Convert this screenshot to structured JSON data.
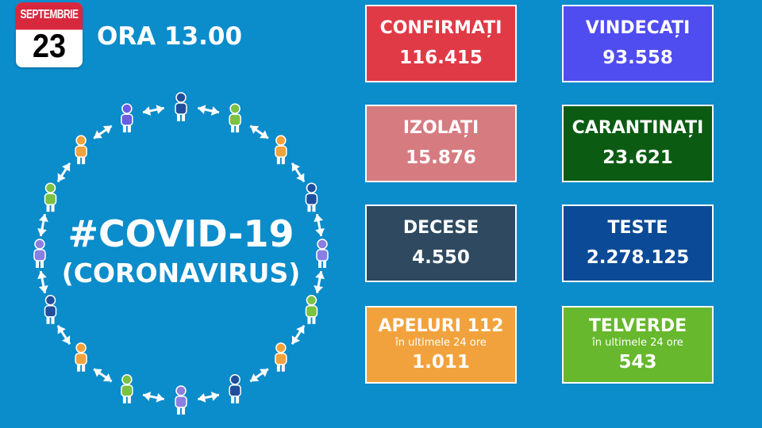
{
  "header": {
    "month": "SEPTEMBRIE",
    "day": "23",
    "time": "ORA 13.00"
  },
  "title": {
    "line1": "#COVID-19",
    "line2": "(CORONAVIRUS)"
  },
  "cards": [
    {
      "id": "confirmati",
      "label": "CONFIRMAȚI",
      "value": "116.415",
      "color": "#e03a46"
    },
    {
      "id": "vindecati",
      "label": "VINDECAȚI",
      "value": "93.558",
      "color": "#4f4cf0"
    },
    {
      "id": "izolati",
      "label": "IZOLAȚI",
      "value": "15.876",
      "color": "#d67b80"
    },
    {
      "id": "carantinati",
      "label": "CARANTINAȚI",
      "value": "23.621",
      "color": "#0b5b12"
    },
    {
      "id": "decese",
      "label": "DECESE",
      "value": "4.550",
      "color": "#2f4a60"
    },
    {
      "id": "teste",
      "label": "TESTE",
      "value": "2.278.125",
      "color": "#0b4a96"
    },
    {
      "id": "apeluri",
      "label": "APELURI 112",
      "sub": "în ultimele 24 ore",
      "value": "1.011",
      "color": "#f2a23c"
    },
    {
      "id": "telverde",
      "label": "TELVERDE",
      "sub": "în ultimele 24 ore",
      "value": "543",
      "color": "#67b82c"
    }
  ],
  "people_colors": [
    "#1f4f9c",
    "#7bc142",
    "#f2a23c",
    "#1f4f9c",
    "#8a7fe0",
    "#7bc142",
    "#f2a23c",
    "#1f4f9c",
    "#8a7fe0",
    "#7bc142",
    "#f2a23c",
    "#1f4f9c",
    "#8a7fe0",
    "#7bc142",
    "#f2a23c",
    "#6b5de0"
  ]
}
